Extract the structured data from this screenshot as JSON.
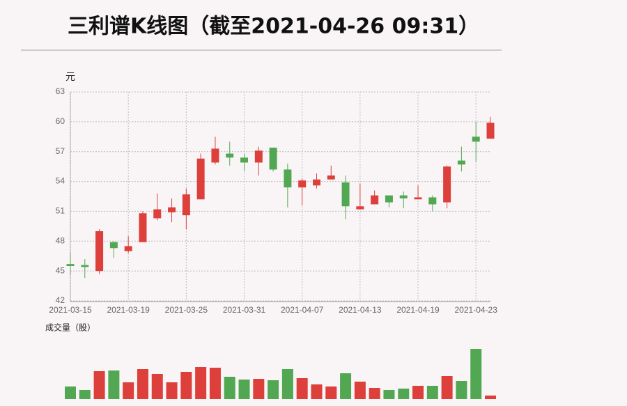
{
  "chart_data": {
    "type": "candlestick",
    "title": "三利谱K线图（截至2021-04-26 09:31）",
    "ylabel": "元",
    "volume_label": "成交量（股）",
    "categories": [
      "2021-03-15",
      null,
      null,
      null,
      "2021-03-19",
      null,
      null,
      null,
      "2021-03-25",
      null,
      null,
      null,
      "2021-03-31",
      null,
      null,
      null,
      "2021-04-07",
      null,
      null,
      null,
      "2021-04-13",
      null,
      null,
      null,
      "2021-04-19",
      null,
      null,
      null,
      "2021-04-23",
      null
    ],
    "open": [
      45.7,
      45.6,
      45.0,
      47.9,
      47.0,
      47.9,
      50.3,
      50.9,
      50.6,
      52.2,
      55.9,
      56.8,
      56.4,
      55.9,
      57.4,
      55.2,
      53.4,
      53.6,
      54.2,
      53.9,
      51.2,
      51.7,
      52.6,
      52.6,
      52.2,
      52.4,
      51.9,
      56.1,
      58.5,
      58.3
    ],
    "high": [
      46.9,
      46.2,
      49.2,
      48.0,
      48.5,
      51.0,
      52.8,
      52.3,
      53.3,
      56.8,
      58.5,
      58.0,
      56.8,
      57.5,
      57.4,
      55.8,
      54.3,
      54.8,
      55.6,
      54.6,
      53.8,
      53.1,
      52.6,
      53.0,
      53.6,
      52.6,
      55.6,
      57.5,
      60.0,
      60.5
    ],
    "low": [
      44.6,
      44.3,
      44.7,
      46.3,
      46.8,
      47.9,
      50.1,
      49.9,
      49.2,
      52.2,
      55.7,
      55.6,
      55.0,
      54.6,
      55.0,
      51.4,
      51.6,
      53.3,
      54.2,
      50.2,
      51.2,
      51.7,
      51.4,
      51.3,
      52.2,
      51.0,
      51.3,
      55.0,
      56.0,
      58.3
    ],
    "close": [
      45.5,
      45.4,
      49.0,
      47.3,
      47.5,
      50.8,
      51.2,
      51.4,
      52.7,
      56.3,
      57.3,
      56.4,
      55.9,
      57.1,
      55.2,
      53.4,
      54.1,
      54.2,
      54.6,
      51.5,
      51.5,
      52.6,
      51.9,
      52.3,
      52.4,
      51.7,
      55.5,
      55.7,
      58.0,
      59.9
    ],
    "volume": [
      18,
      13,
      40,
      41,
      24,
      43,
      36,
      24,
      39,
      46,
      45,
      32,
      28,
      29,
      27,
      43,
      30,
      21,
      18,
      37,
      25,
      16,
      13,
      15,
      19,
      19,
      33,
      26,
      72,
      5
    ],
    "up_color": "#dd3f3a",
    "down_color": "#52a852",
    "ylim": [
      42,
      63
    ],
    "yticks": [
      42,
      45,
      48,
      51,
      54,
      57,
      60,
      63
    ],
    "grid": true
  }
}
